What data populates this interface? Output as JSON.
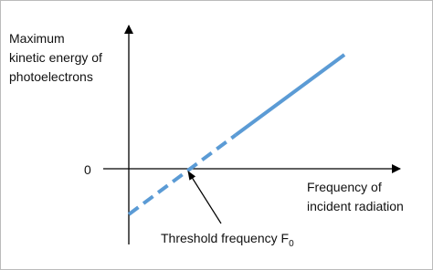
{
  "y_axis_label": [
    "Maximum",
    "kinetic energy of",
    "photoelectrons"
  ],
  "x_axis_label": [
    "Frequency of",
    "incident radiation"
  ],
  "origin_label": "0",
  "annotation": {
    "text": "Threshold frequency F",
    "subscript": "0"
  }
}
